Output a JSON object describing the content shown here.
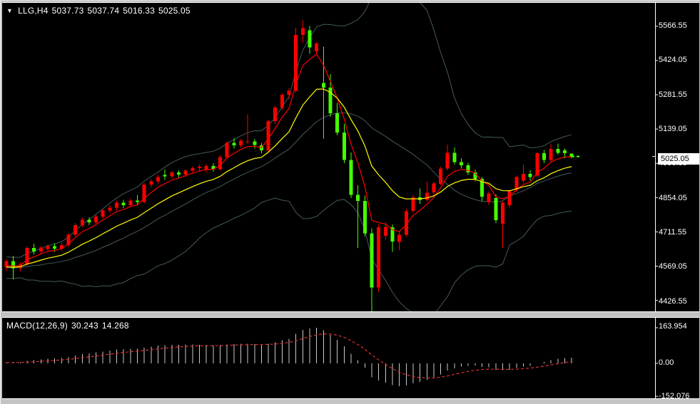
{
  "header": {
    "symbol": "LLG,H4",
    "open": "5037.73",
    "high": "5037.74",
    "low": "5016.33",
    "close": "5025.05"
  },
  "price_axis": {
    "labels": [
      "5566.55",
      "5424.05",
      "5281.55",
      "5139.05",
      "4996.55",
      "4854.05",
      "4711.55",
      "4569.05",
      "4426.55"
    ],
    "current_price": "5025.05"
  },
  "macd_panel": {
    "title": "MACD(12,26,9)",
    "main_value": "30.243",
    "signal_value": "14.268",
    "axis_labels": [
      "163.954",
      "0.00",
      "-152.076"
    ]
  },
  "colors": {
    "background": "#000000",
    "frame": "#c3c3c3",
    "up_candle": "#ff0000",
    "down_candle": "#44ff00",
    "ma_fast": "#ff0000",
    "ma_slow": "#ffff00",
    "bollinger": "#44595c",
    "histogram": "#c9c9c9",
    "macd_signal": "#e03030",
    "axis_text": "#ffffff",
    "price_box_bg": "#ffffff",
    "price_box_text": "#000000"
  },
  "chart_data": {
    "type": "candlestick",
    "symbol": "LLG",
    "timeframe": "H4",
    "title": "LLG,H4 5037.73 5037.74 5016.33 5025.05",
    "legend_note": "red = bullish, lime = bearish",
    "price_axis": {
      "min": 4426.55,
      "max": 5566.55,
      "tick_interval": 142.5
    },
    "candles_ohlc": [
      [
        4565,
        4598,
        4550,
        4590
      ],
      [
        4590,
        4612,
        4514,
        4560
      ],
      [
        4560,
        4585,
        4548,
        4576
      ],
      [
        4576,
        4652,
        4570,
        4645
      ],
      [
        4645,
        4662,
        4618,
        4630
      ],
      [
        4630,
        4652,
        4622,
        4646
      ],
      [
        4640,
        4660,
        4630,
        4652
      ],
      [
        4652,
        4664,
        4628,
        4641
      ],
      [
        4641,
        4665,
        4632,
        4656
      ],
      [
        4656,
        4706,
        4650,
        4700
      ],
      [
        4700,
        4748,
        4694,
        4740
      ],
      [
        4740,
        4770,
        4732,
        4762
      ],
      [
        4762,
        4772,
        4740,
        4752
      ],
      [
        4752,
        4782,
        4744,
        4775
      ],
      [
        4775,
        4808,
        4768,
        4800
      ],
      [
        4800,
        4822,
        4790,
        4812
      ],
      [
        4812,
        4840,
        4802,
        4832
      ],
      [
        4832,
        4844,
        4810,
        4822
      ],
      [
        4822,
        4850,
        4814,
        4842
      ],
      [
        4842,
        4866,
        4822,
        4836
      ],
      [
        4836,
        4914,
        4830,
        4908
      ],
      [
        4908,
        4930,
        4896,
        4922
      ],
      [
        4922,
        4948,
        4912,
        4940
      ],
      [
        4948,
        4972,
        4928,
        4942
      ],
      [
        4942,
        4965,
        4934,
        4958
      ],
      [
        4958,
        4968,
        4938,
        4950
      ],
      [
        4950,
        4974,
        4942,
        4966
      ],
      [
        4966,
        4984,
        4958,
        4976
      ],
      [
        4976,
        4992,
        4962,
        4982
      ],
      [
        4970,
        4995,
        4958,
        4985
      ],
      [
        4985,
        4998,
        4962,
        4972
      ],
      [
        4972,
        5030,
        4966,
        5022
      ],
      [
        5022,
        5088,
        5014,
        5082
      ],
      [
        5082,
        5102,
        5058,
        5072
      ],
      [
        5072,
        5098,
        5062,
        5090
      ],
      [
        5086,
        5200,
        5078,
        5088
      ],
      [
        5088,
        5098,
        5058,
        5072
      ],
      [
        5072,
        5082,
        5038,
        5050
      ],
      [
        5050,
        5178,
        5044,
        5172
      ],
      [
        5172,
        5236,
        5160,
        5228
      ],
      [
        5228,
        5288,
        5218,
        5282
      ],
      [
        5282,
        5310,
        5262,
        5298
      ],
      [
        5298,
        5560,
        5290,
        5530
      ],
      [
        5530,
        5592,
        5498,
        5558
      ],
      [
        5550,
        5567,
        5452,
        5478
      ],
      [
        5462,
        5500,
        5448,
        5495
      ],
      [
        5330,
        5481,
        5099,
        5312
      ],
      [
        5312,
        5368,
        5190,
        5205
      ],
      [
        5205,
        5248,
        5112,
        5125
      ],
      [
        5125,
        5160,
        4998,
        5010
      ],
      [
        5010,
        5042,
        4852,
        4865
      ],
      [
        4865,
        4905,
        4645,
        4840
      ],
      [
        4840,
        4862,
        4692,
        4705
      ],
      [
        4705,
        4726,
        4380,
        4480
      ],
      [
        4480,
        4742,
        4462,
        4730
      ],
      [
        4695,
        4752,
        4680,
        4732
      ],
      [
        4730,
        4742,
        4628,
        4672
      ],
      [
        4670,
        4712,
        4636,
        4700
      ],
      [
        4700,
        4808,
        4692,
        4798
      ],
      [
        4798,
        4865,
        4790,
        4855
      ],
      [
        4855,
        4892,
        4828,
        4845
      ],
      [
        4845,
        4920,
        4838,
        4875
      ],
      [
        4875,
        4920,
        4862,
        4912
      ],
      [
        4912,
        4982,
        4905,
        4975
      ],
      [
        4975,
        5075,
        4968,
        5040
      ],
      [
        5040,
        5062,
        4992,
        5002
      ],
      [
        5002,
        5018,
        4975,
        4988
      ],
      [
        4988,
        4999,
        4948,
        4958
      ],
      [
        4958,
        4970,
        4922,
        4932
      ],
      [
        4932,
        4940,
        4840,
        4858
      ],
      [
        4835,
        4878,
        4822,
        4872
      ],
      [
        4852,
        4868,
        4748,
        4760
      ],
      [
        4745,
        4838,
        4645,
        4832
      ],
      [
        4822,
        4888,
        4812,
        4880
      ],
      [
        4886,
        4946,
        4878,
        4940
      ],
      [
        4924,
        4992,
        4916,
        4953
      ],
      [
        4953,
        4968,
        4925,
        4939
      ],
      [
        4945,
        5042,
        4938,
        5038
      ],
      [
        5038,
        5052,
        4998,
        5010
      ],
      [
        5010,
        5078,
        5004,
        5056
      ],
      [
        5056,
        5078,
        5032,
        5040
      ],
      [
        5050,
        5058,
        5018,
        5039
      ],
      [
        5037.73,
        5037.74,
        5016.33,
        5025.05
      ]
    ],
    "indicators": {
      "overlays": [
        {
          "name": "ma-fast",
          "type": "ema",
          "period": 5,
          "color": "#ff0000"
        },
        {
          "name": "ma-slow",
          "type": "ema",
          "period": 13,
          "color": "#ffff00"
        },
        {
          "name": "bollinger",
          "type": "bands",
          "period": 20,
          "deviation": 2,
          "color": "#44595c"
        }
      ],
      "macd": {
        "fast": 12,
        "slow": 26,
        "signal": 9,
        "current_main": 30.243,
        "current_signal": 14.268,
        "axis_max": 163.954,
        "axis_zero": 0.0,
        "axis_min": -152.076
      }
    }
  }
}
